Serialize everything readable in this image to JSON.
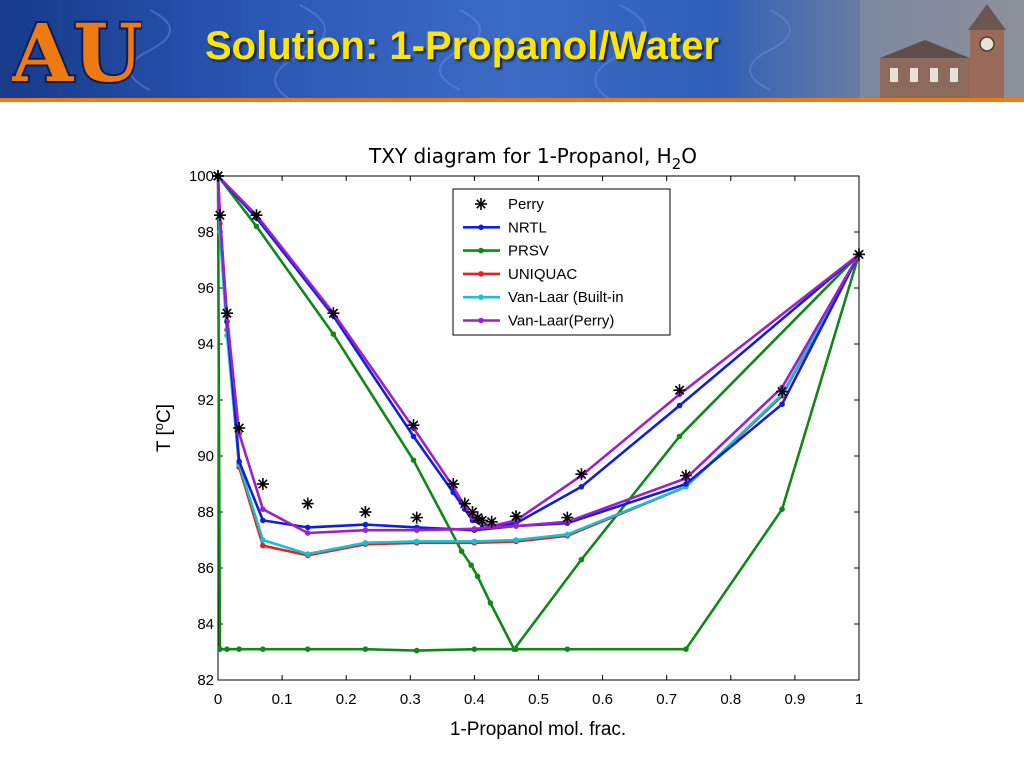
{
  "slide": {
    "title": "Solution: 1-Propanol/Water"
  },
  "logo": {
    "text": "AU"
  },
  "chart_data": {
    "type": "line",
    "title": "TXY diagram for 1-Propanol, H",
    "title_sub": "2",
    "title_end": "O",
    "xlabel": "1-Propanol mol. frac.",
    "ylabel": "T [",
    "ylabel_sup": "o",
    "ylabel_end": "C]",
    "xlim": [
      0,
      1
    ],
    "ylim": [
      82,
      100
    ],
    "xticks": [
      0,
      0.1,
      0.2,
      0.3,
      0.4,
      0.5,
      0.6,
      0.7,
      0.8,
      0.9,
      1
    ],
    "xtick_labels": [
      "0",
      "0.1",
      "0.2",
      "0.3",
      "0.4",
      "0.5",
      "0.6",
      "0.7",
      "0.8",
      "0.9",
      "1"
    ],
    "yticks": [
      82,
      84,
      86,
      88,
      90,
      92,
      94,
      96,
      98,
      100
    ],
    "ytick_labels": [
      "82",
      "84",
      "86",
      "88",
      "90",
      "92",
      "94",
      "96",
      "98",
      "100"
    ],
    "grid": false,
    "legend_position": "top-right",
    "series": [
      {
        "name": "Perry",
        "color": "#000000",
        "marker": "star",
        "line": false,
        "points": [
          [
            0.0,
            100.0
          ],
          [
            0.003,
            98.6
          ],
          [
            0.014,
            95.1
          ],
          [
            0.033,
            91.0
          ],
          [
            0.07,
            89.0
          ],
          [
            0.14,
            88.3
          ],
          [
            0.23,
            88.0
          ],
          [
            0.31,
            87.8
          ],
          [
            0.0,
            100.0
          ],
          [
            0.06,
            98.6
          ],
          [
            0.18,
            95.1
          ],
          [
            0.305,
            91.1
          ],
          [
            0.367,
            89.0
          ],
          [
            0.385,
            88.3
          ],
          [
            0.397,
            88.0
          ],
          [
            0.405,
            87.8
          ],
          [
            0.412,
            87.7
          ],
          [
            0.427,
            87.65
          ],
          [
            0.465,
            87.85
          ],
          [
            0.545,
            87.8
          ],
          [
            0.567,
            89.35
          ],
          [
            0.72,
            92.35
          ],
          [
            0.73,
            89.3
          ],
          [
            0.88,
            92.3
          ],
          [
            1.0,
            97.2
          ]
        ]
      },
      {
        "name": "NRTL",
        "color": "#1020d8",
        "marker": "dot",
        "line": true,
        "curves": [
          [
            [
              0.0,
              100.0
            ],
            [
              0.003,
              98.6
            ],
            [
              0.014,
              94.8
            ],
            [
              0.033,
              89.8
            ],
            [
              0.07,
              87.7
            ],
            [
              0.14,
              87.45
            ],
            [
              0.23,
              87.55
            ],
            [
              0.31,
              87.45
            ],
            [
              0.4,
              87.35
            ],
            [
              0.465,
              87.5
            ],
            [
              0.545,
              87.6
            ],
            [
              0.73,
              89.0
            ],
            [
              0.88,
              91.85
            ],
            [
              1.0,
              97.2
            ]
          ],
          [
            [
              0.0,
              100.0
            ],
            [
              0.06,
              98.5
            ],
            [
              0.18,
              95.0
            ],
            [
              0.305,
              90.7
            ],
            [
              0.367,
              88.7
            ],
            [
              0.385,
              88.1
            ],
            [
              0.397,
              87.7
            ],
            [
              0.412,
              87.55
            ],
            [
              0.427,
              87.5
            ],
            [
              0.465,
              87.6
            ],
            [
              0.567,
              88.9
            ],
            [
              0.72,
              91.8
            ],
            [
              1.0,
              97.2
            ]
          ]
        ]
      },
      {
        "name": "PRSV",
        "color": "#108818",
        "marker": "dot",
        "line": true,
        "curves": [
          [
            [
              0.0,
              100.0
            ],
            [
              0.003,
              83.1
            ],
            [
              0.014,
              83.1
            ],
            [
              0.033,
              83.1
            ],
            [
              0.07,
              83.1
            ],
            [
              0.14,
              83.1
            ],
            [
              0.23,
              83.1
            ],
            [
              0.31,
              83.05
            ],
            [
              0.4,
              83.1
            ],
            [
              0.465,
              83.1
            ],
            [
              0.545,
              83.1
            ],
            [
              0.73,
              83.1
            ],
            [
              0.88,
              88.1
            ],
            [
              1.0,
              97.2
            ]
          ],
          [
            [
              0.0,
              100.0
            ],
            [
              0.06,
              98.2
            ],
            [
              0.18,
              94.35
            ],
            [
              0.305,
              89.85
            ],
            [
              0.38,
              86.6
            ],
            [
              0.395,
              86.1
            ],
            [
              0.405,
              85.7
            ],
            [
              0.425,
              84.75
            ],
            [
              0.462,
              83.1
            ],
            [
              0.567,
              86.3
            ],
            [
              0.72,
              90.7
            ],
            [
              1.0,
              97.2
            ]
          ]
        ]
      },
      {
        "name": "UNIQUAC",
        "color": "#e82020",
        "marker": "dot",
        "line": true,
        "curves": [
          [
            [
              0.0,
              100.0
            ],
            [
              0.003,
              98.3
            ],
            [
              0.014,
              94.5
            ],
            [
              0.033,
              89.6
            ],
            [
              0.07,
              86.8
            ],
            [
              0.14,
              86.45
            ],
            [
              0.23,
              86.85
            ],
            [
              0.31,
              86.9
            ],
            [
              0.4,
              86.9
            ],
            [
              0.465,
              86.95
            ],
            [
              0.545,
              87.15
            ],
            [
              0.73,
              88.9
            ],
            [
              0.88,
              92.15
            ],
            [
              1.0,
              97.2
            ]
          ]
        ]
      },
      {
        "name": "Van-Laar (Built-in",
        "color": "#18c0d0",
        "marker": "dot",
        "line": true,
        "curves": [
          [
            [
              0.0,
              100.0
            ],
            [
              0.003,
              98.0
            ],
            [
              0.014,
              94.3
            ],
            [
              0.033,
              89.7
            ],
            [
              0.07,
              87.0
            ],
            [
              0.14,
              86.5
            ],
            [
              0.23,
              86.9
            ],
            [
              0.31,
              86.95
            ],
            [
              0.4,
              86.95
            ],
            [
              0.465,
              87.0
            ],
            [
              0.545,
              87.2
            ],
            [
              0.73,
              88.9
            ],
            [
              0.88,
              92.2
            ],
            [
              1.0,
              97.2
            ]
          ]
        ]
      },
      {
        "name": "Van-Laar(Perry)",
        "color": "#a020c8",
        "marker": "dot",
        "line": true,
        "curves": [
          [
            [
              0.0,
              100.0
            ],
            [
              0.003,
              98.6
            ],
            [
              0.014,
              95.0
            ],
            [
              0.033,
              90.8
            ],
            [
              0.07,
              88.1
            ],
            [
              0.14,
              87.25
            ],
            [
              0.23,
              87.35
            ],
            [
              0.31,
              87.35
            ],
            [
              0.4,
              87.4
            ],
            [
              0.465,
              87.5
            ],
            [
              0.545,
              87.65
            ],
            [
              0.73,
              89.2
            ],
            [
              0.88,
              92.45
            ],
            [
              1.0,
              97.2
            ]
          ],
          [
            [
              0.0,
              100.0
            ],
            [
              0.06,
              98.6
            ],
            [
              0.18,
              95.1
            ],
            [
              0.305,
              91.0
            ],
            [
              0.367,
              88.9
            ],
            [
              0.385,
              88.2
            ],
            [
              0.397,
              87.8
            ],
            [
              0.412,
              87.6
            ],
            [
              0.427,
              87.5
            ],
            [
              0.465,
              87.7
            ],
            [
              0.567,
              89.3
            ],
            [
              0.72,
              92.2
            ],
            [
              1.0,
              97.2
            ]
          ]
        ]
      }
    ]
  }
}
